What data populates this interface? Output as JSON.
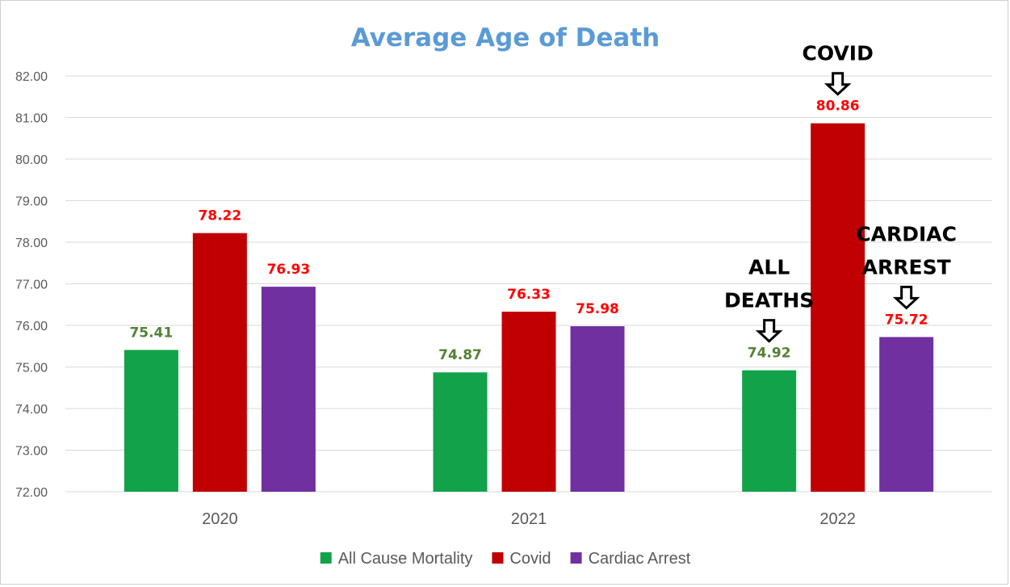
{
  "chart_data": {
    "type": "bar",
    "title": "Average Age of Death",
    "categories": [
      "2020",
      "2021",
      "2022"
    ],
    "series": [
      {
        "name": "All Cause Mortality",
        "color": "#12a24a",
        "label_color": "#538135",
        "values": [
          75.41,
          74.87,
          74.92
        ]
      },
      {
        "name": "Covid",
        "color": "#c00000",
        "label_color": "#ff0000",
        "values": [
          78.22,
          76.33,
          80.86
        ]
      },
      {
        "name": "Cardiac Arrest",
        "color": "#7030a0",
        "label_color": "#ff0000",
        "values": [
          76.93,
          75.98,
          75.72
        ]
      }
    ],
    "data_labels": [
      [
        "75.41",
        "74.87",
        "74.92"
      ],
      [
        "78.22",
        "76.33",
        "80.86"
      ],
      [
        "76.93",
        "75.98",
        "75.72"
      ]
    ],
    "ylim": [
      72,
      82
    ],
    "ytick_step": 1,
    "ytick_labels": [
      "72.00",
      "73.00",
      "74.00",
      "75.00",
      "76.00",
      "77.00",
      "78.00",
      "79.00",
      "80.00",
      "81.00",
      "82.00"
    ],
    "xlabel": "",
    "ylabel": "",
    "grid": true,
    "legend_position": "bottom",
    "annotations": [
      {
        "lines": [
          "ALL",
          "DEATHS"
        ],
        "category": "2022",
        "series": 0
      },
      {
        "lines": [
          "COVID"
        ],
        "category": "2022",
        "series": 1
      },
      {
        "lines": [
          "CARDIAC",
          "ARREST"
        ],
        "category": "2022",
        "series": 2
      }
    ]
  }
}
